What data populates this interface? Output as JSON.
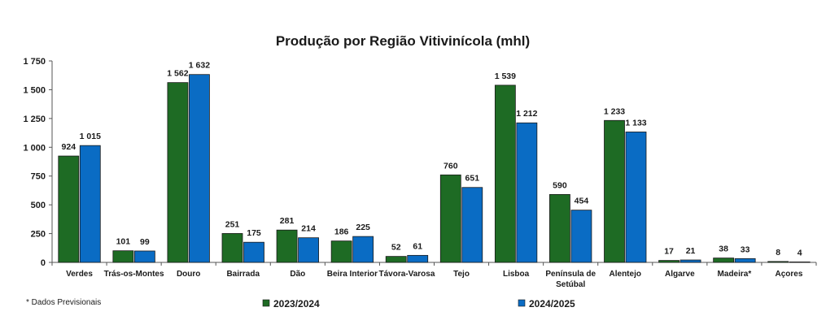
{
  "chart_data": {
    "type": "bar",
    "title": "Produção por Região Vitivinícola (mhl)",
    "categories": [
      "Verdes",
      "Trás-os-Montes",
      "Douro",
      "Bairrada",
      "Dão",
      "Beira Interior",
      "Távora-Varosa",
      "Tejo",
      "Lisboa",
      "Península de Setúbal",
      "Alentejo",
      "Algarve",
      "Madeira*",
      "Açores"
    ],
    "series": [
      {
        "name": "2023/2024",
        "color": "#1e6b24",
        "values": [
          924,
          101,
          1562,
          251,
          281,
          186,
          52,
          760,
          1539,
          590,
          1233,
          17,
          38,
          8
        ]
      },
      {
        "name": "2024/2025",
        "color": "#0a6cc4",
        "values": [
          1015,
          99,
          1632,
          175,
          214,
          225,
          61,
          651,
          1212,
          454,
          1133,
          21,
          33,
          4
        ]
      }
    ],
    "data_labels_series1": [
      "924",
      "101",
      "1 562",
      "251",
      "281",
      "186",
      "52",
      "760",
      "1 539",
      "590",
      "1 233",
      "17",
      "38",
      "8"
    ],
    "data_labels_series2": [
      "1 015",
      "99",
      "1 632",
      "175",
      "214",
      "225",
      "61",
      "651",
      "1 212",
      "454",
      "1 133",
      "21",
      "33",
      "4"
    ],
    "ylim": [
      0,
      1750
    ],
    "yticks": [
      0,
      250,
      500,
      750,
      1000,
      1250,
      1500,
      1750
    ],
    "ytick_labels": [
      "0",
      "250",
      "500",
      "750",
      "1 000",
      "1 250",
      "1 500",
      "1 750"
    ],
    "grid": false,
    "legend_position": "bottom",
    "xlabel": "",
    "ylabel": ""
  },
  "footnote": "* Dados Previsionais"
}
